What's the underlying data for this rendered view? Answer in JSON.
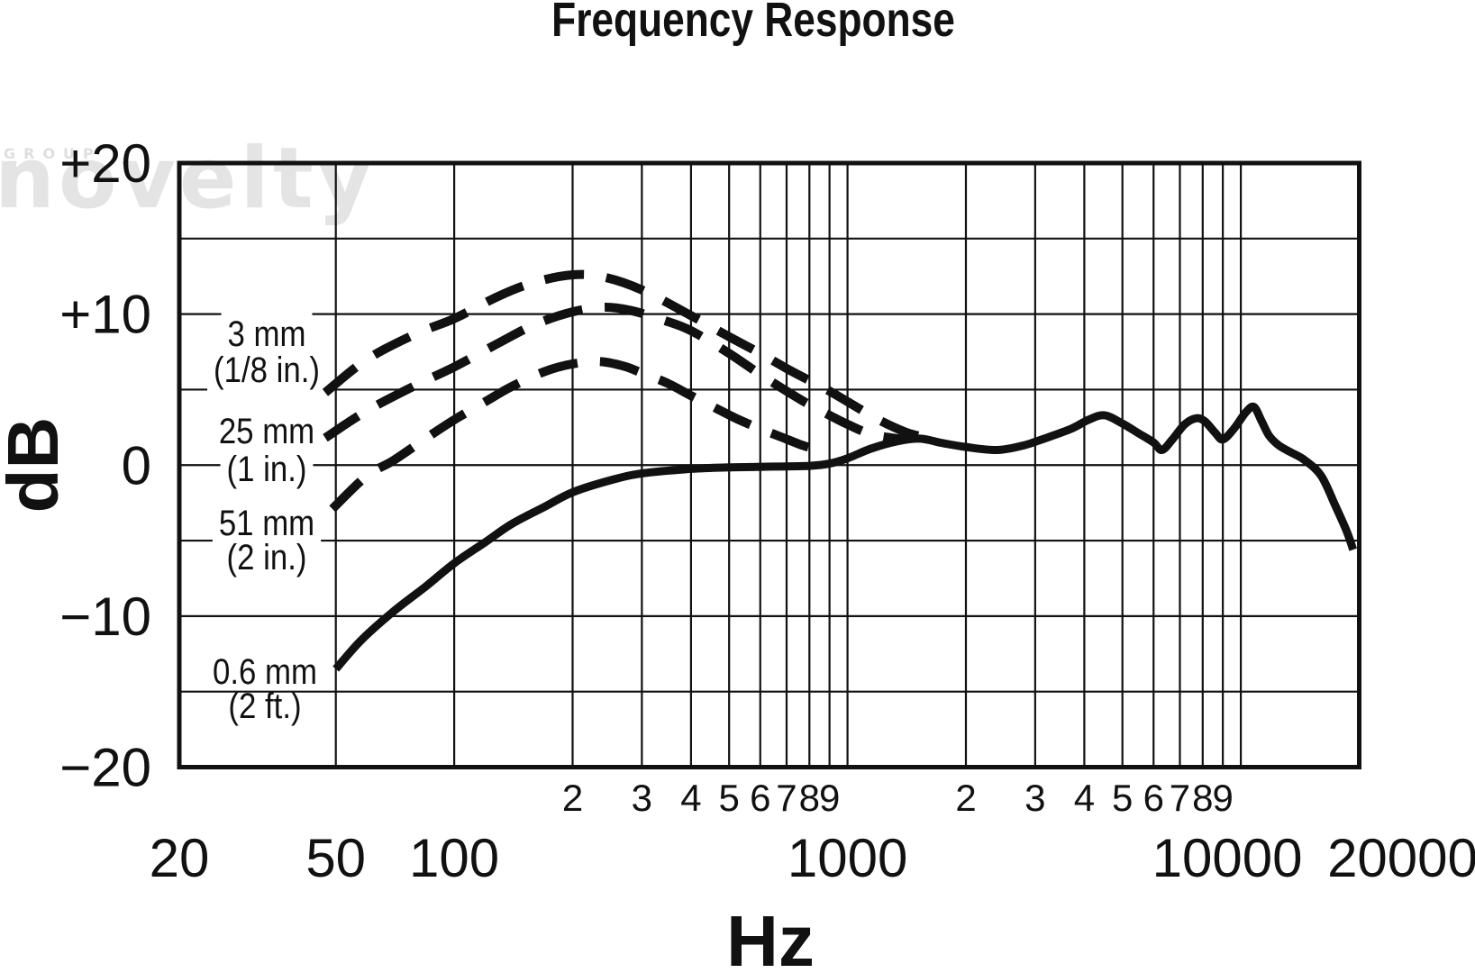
{
  "title": "Frequency Response",
  "watermark": {
    "small_text": "GROUP",
    "brand_text": "novelty"
  },
  "y_axis": {
    "unit": "dB",
    "tick_labels": [
      "+20",
      "+10",
      "0",
      "−10",
      "−20"
    ],
    "tick_values": [
      20,
      10,
      0,
      -10,
      -20
    ]
  },
  "x_axis": {
    "unit": "Hz",
    "major_tick_labels": [
      "20",
      "50",
      "100",
      "1000",
      "10000",
      "20000"
    ],
    "major_tick_values": [
      20,
      50,
      100,
      1000,
      10000,
      20000
    ],
    "minor_tick_labels": [
      "2",
      "3",
      "4",
      "5",
      "6",
      "7",
      "8",
      "9",
      "2",
      "3",
      "4",
      "5",
      "6",
      "7",
      "8",
      "9"
    ],
    "minor_tick_values": [
      200,
      300,
      400,
      500,
      600,
      700,
      800,
      900,
      2000,
      3000,
      4000,
      5000,
      6000,
      7000,
      8000,
      9000
    ]
  },
  "chart_data": {
    "type": "line",
    "title": "Frequency Response",
    "xlabel": "Hz",
    "ylabel": "dB",
    "x_scale": "log",
    "xlim": [
      20,
      20000
    ],
    "ylim": [
      -20,
      20
    ],
    "grid": true,
    "grid_db_step": 5,
    "grid_frequencies": [
      50,
      100,
      200,
      300,
      400,
      500,
      600,
      700,
      800,
      900,
      1000,
      2000,
      3000,
      4000,
      5000,
      6000,
      7000,
      8000,
      9000,
      10000
    ],
    "series": [
      {
        "name": "3 mm (1/8 in.)",
        "label_line1": "3 mm",
        "label_line2": "(1/8 in.)",
        "line_style": "dashed",
        "points": [
          [
            47,
            4.8
          ],
          [
            60,
            7.0
          ],
          [
            80,
            8.7
          ],
          [
            100,
            9.7
          ],
          [
            130,
            11.2
          ],
          [
            160,
            12.1
          ],
          [
            200,
            12.6
          ],
          [
            240,
            12.45
          ],
          [
            300,
            11.6
          ],
          [
            400,
            9.9
          ],
          [
            500,
            8.5
          ],
          [
            600,
            7.4
          ],
          [
            700,
            6.4
          ],
          [
            800,
            5.6
          ],
          [
            900,
            4.9
          ],
          [
            1000,
            4.2
          ],
          [
            1200,
            3.0
          ],
          [
            1400,
            2.2
          ],
          [
            1560,
            1.85
          ]
        ]
      },
      {
        "name": "25 mm (1 in.)",
        "label_line1": "25 mm",
        "label_line2": "(1 in.)",
        "line_style": "dashed",
        "points": [
          [
            47,
            1.8
          ],
          [
            60,
            3.6
          ],
          [
            80,
            5.3
          ],
          [
            100,
            6.5
          ],
          [
            130,
            8.1
          ],
          [
            160,
            9.3
          ],
          [
            200,
            10.15
          ],
          [
            240,
            10.45
          ],
          [
            280,
            10.25
          ],
          [
            340,
            9.6
          ],
          [
            400,
            8.9
          ],
          [
            500,
            7.4
          ],
          [
            600,
            6.0
          ],
          [
            700,
            4.9
          ],
          [
            800,
            4.0
          ],
          [
            900,
            3.3
          ],
          [
            1000,
            2.7
          ],
          [
            1150,
            2.05
          ],
          [
            1380,
            1.7
          ]
        ]
      },
      {
        "name": "51 mm (2 in.)",
        "label_line1": "51 mm",
        "label_line2": "(2 in.)",
        "line_style": "dashed",
        "points": [
          [
            49,
            -2.9
          ],
          [
            60,
            -0.7
          ],
          [
            70,
            0.3
          ],
          [
            85,
            1.8
          ],
          [
            100,
            3.0
          ],
          [
            120,
            4.2
          ],
          [
            140,
            5.2
          ],
          [
            170,
            6.2
          ],
          [
            200,
            6.7
          ],
          [
            235,
            6.85
          ],
          [
            270,
            6.55
          ],
          [
            300,
            6.1
          ],
          [
            350,
            5.4
          ],
          [
            400,
            4.6
          ],
          [
            460,
            3.8
          ],
          [
            520,
            3.1
          ],
          [
            600,
            2.4
          ],
          [
            680,
            1.85
          ],
          [
            760,
            1.35
          ],
          [
            820,
            1.1
          ],
          [
            880,
            0.95
          ]
        ]
      },
      {
        "name": "0.6 mm (2 ft.)",
        "label_line1": "0.6 mm",
        "label_line2": "(2 ft.)",
        "line_style": "solid",
        "points": [
          [
            50,
            -13.5
          ],
          [
            58,
            -11.6
          ],
          [
            70,
            -9.7
          ],
          [
            85,
            -8.0
          ],
          [
            100,
            -6.5
          ],
          [
            120,
            -5.1
          ],
          [
            140,
            -3.9
          ],
          [
            170,
            -2.75
          ],
          [
            200,
            -1.8
          ],
          [
            250,
            -1.0
          ],
          [
            300,
            -0.55
          ],
          [
            400,
            -0.25
          ],
          [
            500,
            -0.15
          ],
          [
            650,
            -0.1
          ],
          [
            800,
            -0.05
          ],
          [
            900,
            0.1
          ],
          [
            1000,
            0.45
          ],
          [
            1150,
            1.1
          ],
          [
            1350,
            1.6
          ],
          [
            1530,
            1.75
          ],
          [
            1750,
            1.45
          ],
          [
            2000,
            1.2
          ],
          [
            2400,
            1.0
          ],
          [
            2800,
            1.3
          ],
          [
            3200,
            1.8
          ],
          [
            3700,
            2.4
          ],
          [
            4100,
            3.0
          ],
          [
            4500,
            3.3
          ],
          [
            5000,
            2.75
          ],
          [
            5500,
            2.1
          ],
          [
            6000,
            1.5
          ],
          [
            6300,
            1.0
          ],
          [
            6700,
            1.7
          ],
          [
            7200,
            2.7
          ],
          [
            7700,
            3.1
          ],
          [
            8100,
            2.9
          ],
          [
            8600,
            2.15
          ],
          [
            9000,
            1.7
          ],
          [
            9600,
            2.4
          ],
          [
            10300,
            3.5
          ],
          [
            10800,
            3.85
          ],
          [
            11300,
            2.9
          ],
          [
            11800,
            1.95
          ],
          [
            12500,
            1.3
          ],
          [
            13400,
            0.85
          ],
          [
            14500,
            0.35
          ],
          [
            16000,
            -0.7
          ],
          [
            17400,
            -2.7
          ],
          [
            18600,
            -4.4
          ],
          [
            19300,
            -5.6
          ]
        ]
      }
    ]
  }
}
